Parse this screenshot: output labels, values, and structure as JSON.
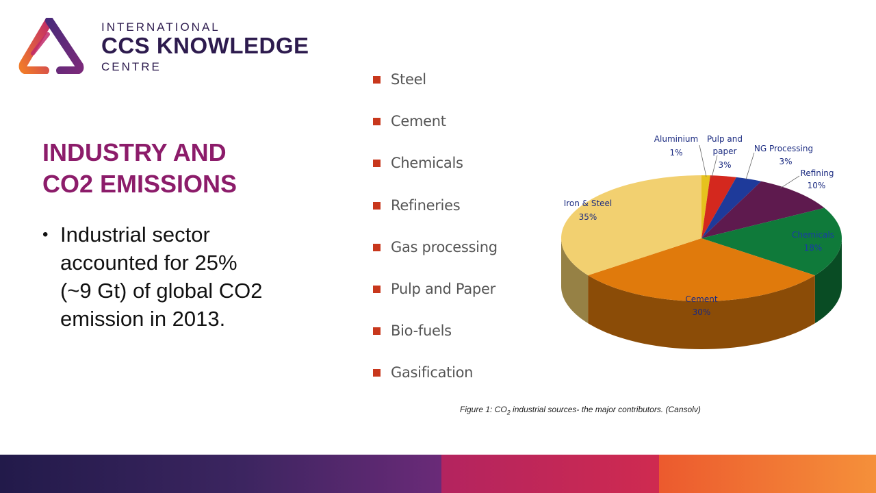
{
  "logo": {
    "line1": "INTERNATIONAL",
    "line2": "CCS KNOWLEDGE",
    "line3": "CENTRE",
    "colors": {
      "purple": "#5a2a7a",
      "magenta": "#c02a6a",
      "orange": "#f07a2a",
      "text": "#2d1b4e"
    }
  },
  "title": {
    "line1": "INDUSTRY AND",
    "line2": "CO2 EMISSIONS",
    "color": "#8c1c6a"
  },
  "bullet": {
    "text": "Industrial sector accounted for 25% (~9 Gt) of global CO2 emission in 2013."
  },
  "sources": {
    "items": [
      "Steel",
      "Cement",
      "Chemicals",
      "Refineries",
      "Gas processing",
      "Pulp and Paper",
      "Bio-fuels",
      "Gasification"
    ],
    "marker_color": "#c8371c"
  },
  "chart_data": {
    "type": "pie",
    "slices": [
      {
        "label": "Aluminium",
        "value": 1,
        "display": "1%",
        "color": "#e6c21e"
      },
      {
        "label": "Pulp and paper",
        "value": 3,
        "display": "3%",
        "color": "#d4281e"
      },
      {
        "label": "NG Processing",
        "value": 3,
        "display": "3%",
        "color": "#1e3a9a"
      },
      {
        "label": "Refining",
        "value": 10,
        "display": "10%",
        "color": "#5e1a4e"
      },
      {
        "label": "Chemicals",
        "value": 18,
        "display": "18%",
        "color": "#0f7a3a"
      },
      {
        "label": "Cement",
        "value": 30,
        "display": "30%",
        "color": "#e07a0c"
      },
      {
        "label": "Iron & Steel",
        "value": 35,
        "display": "35%",
        "color": "#f2d070"
      }
    ]
  },
  "caption": {
    "prefix": "Figure 1: CO",
    "subscript": "2",
    "suffix": " industrial sources- the major contributors. (Cansolv)"
  },
  "footer": {
    "colors": [
      "#2a1d52",
      "#c2274f",
      "#f07a32"
    ]
  }
}
